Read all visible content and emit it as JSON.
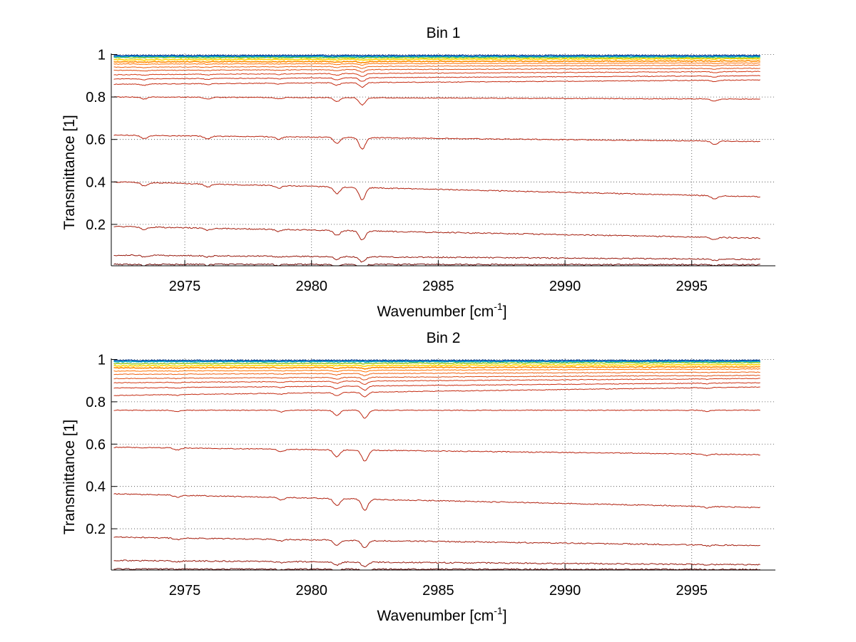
{
  "chart_data": [
    {
      "type": "line",
      "title": "Bin 1",
      "xlabel": "Wavenumber [cm",
      "xlabel_sup": "-1",
      "xlabel_end": "]",
      "ylabel": "Transmittance [1]",
      "xlim": [
        2972.1,
        2998.3
      ],
      "ylim": [
        0.005,
        1.005
      ],
      "xticks": [
        2975,
        2980,
        2985,
        2990,
        2995
      ],
      "xtick_labels": [
        "2975",
        "2980",
        "2985",
        "2990",
        "2995"
      ],
      "yticks": [
        0.2,
        0.4,
        0.6,
        0.8,
        1
      ],
      "ytick_labels": [
        "0.2",
        "0.4",
        "0.6",
        "0.8",
        "1"
      ],
      "grid": true,
      "x_start": 2972.2,
      "x_end": 2997.7,
      "series_start_values": [
        0.995,
        0.99,
        0.985,
        0.975,
        0.965,
        0.955,
        0.94,
        0.925,
        0.905,
        0.885,
        0.86,
        0.8,
        0.62,
        0.4,
        0.19,
        0.055,
        0.012
      ],
      "series_end_values": [
        0.995,
        0.99,
        0.985,
        0.98,
        0.97,
        0.96,
        0.95,
        0.935,
        0.92,
        0.9,
        0.88,
        0.79,
        0.59,
        0.33,
        0.135,
        0.035,
        0.01
      ],
      "absorption_lines": [
        {
          "x": 2973.4,
          "rel_depth": 0.08
        },
        {
          "x": 2975.9,
          "rel_depth": 0.07
        },
        {
          "x": 2978.7,
          "rel_depth": 0.06
        },
        {
          "x": 2981.0,
          "rel_depth": 0.16
        },
        {
          "x": 2982.0,
          "rel_depth": 0.3
        },
        {
          "x": 2995.9,
          "rel_depth": 0.09
        }
      ],
      "series_colors": [
        "#0047ab",
        "#00a8c8",
        "#9acd32",
        "#ffd700",
        "#ff8c00",
        "#ff7000",
        "#ee6010",
        "#dd4c14",
        "#d43a14",
        "#cc2e12",
        "#c42a10",
        "#bf2610",
        "#b8220e",
        "#b0200e",
        "#a41c0c",
        "#96160a",
        "#6a0a08"
      ]
    },
    {
      "type": "line",
      "title": "Bin 2",
      "xlabel": "Wavenumber [cm",
      "xlabel_sup": "-1",
      "xlabel_end": "]",
      "ylabel": "Transmittance [1]",
      "xlim": [
        2972.1,
        2998.3
      ],
      "ylim": [
        0.005,
        1.005
      ],
      "xticks": [
        2975,
        2980,
        2985,
        2990,
        2995
      ],
      "xtick_labels": [
        "2975",
        "2980",
        "2985",
        "2990",
        "2995"
      ],
      "yticks": [
        0.2,
        0.4,
        0.6,
        0.8,
        1
      ],
      "ytick_labels": [
        "0.2",
        "0.4",
        "0.6",
        "0.8",
        "1"
      ],
      "grid": true,
      "x_start": 2972.2,
      "x_end": 2997.7,
      "series_start_values": [
        0.995,
        0.99,
        0.98,
        0.97,
        0.96,
        0.945,
        0.93,
        0.91,
        0.89,
        0.865,
        0.83,
        0.76,
        0.585,
        0.365,
        0.16,
        0.05,
        0.01
      ],
      "series_end_values": [
        0.995,
        0.99,
        0.985,
        0.975,
        0.965,
        0.955,
        0.94,
        0.925,
        0.91,
        0.89,
        0.87,
        0.76,
        0.55,
        0.3,
        0.12,
        0.03,
        0.008
      ],
      "absorption_lines": [
        {
          "x": 2974.7,
          "rel_depth": 0.05
        },
        {
          "x": 2978.8,
          "rel_depth": 0.06
        },
        {
          "x": 2981.0,
          "rel_depth": 0.18
        },
        {
          "x": 2982.1,
          "rel_depth": 0.28
        },
        {
          "x": 2995.6,
          "rel_depth": 0.04
        }
      ],
      "series_colors": [
        "#0047ab",
        "#00a8c8",
        "#9acd32",
        "#ffd700",
        "#ff8c00",
        "#ff7000",
        "#ee6010",
        "#dd4c14",
        "#d43a14",
        "#cc2e12",
        "#c42a10",
        "#bf2610",
        "#b8220e",
        "#b0200e",
        "#a41c0c",
        "#96160a",
        "#6a0a08"
      ]
    }
  ]
}
